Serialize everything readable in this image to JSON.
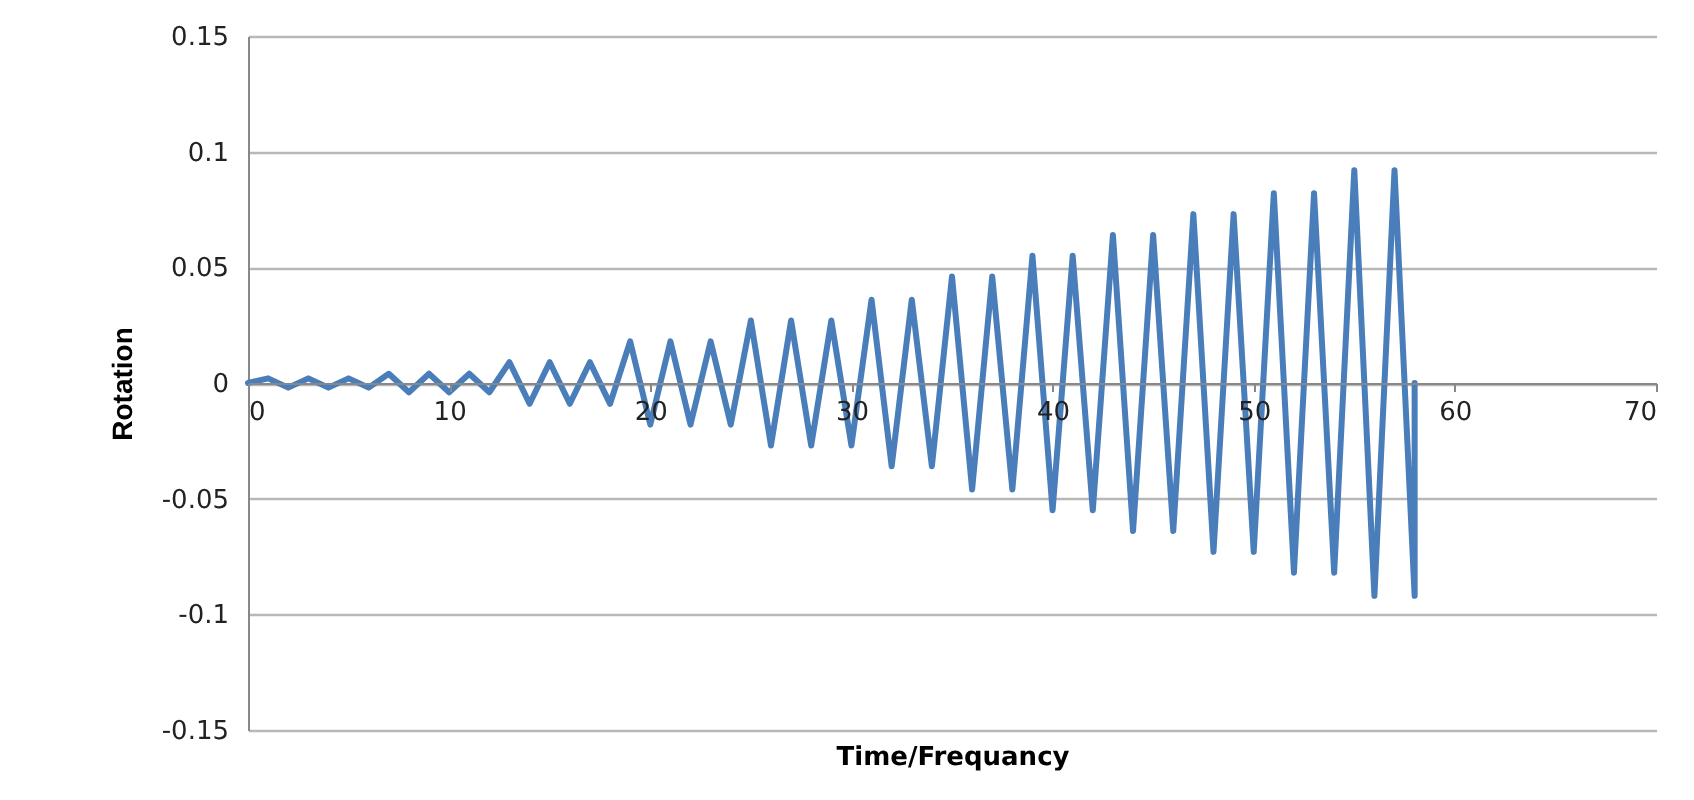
{
  "chart_data": {
    "type": "line",
    "xlabel": "Time/Frequancy",
    "ylabel": "Rotation",
    "x": [
      0,
      1,
      2,
      3,
      4,
      5,
      6,
      7,
      8,
      9,
      10,
      11,
      12,
      13,
      14,
      15,
      16,
      17,
      18,
      19,
      20,
      21,
      22,
      23,
      24,
      25,
      26,
      27,
      28,
      29,
      30,
      31,
      32,
      33,
      34,
      35,
      36,
      37,
      38,
      39,
      40,
      41,
      42,
      43,
      44,
      45,
      46,
      47,
      48,
      49,
      50,
      51,
      52,
      53,
      54,
      55,
      56,
      57,
      58,
      58
    ],
    "series": [
      {
        "color": "#4a7ebb",
        "values": [
          0,
          0.002,
          -0.002,
          0.002,
          -0.002,
          0.002,
          -0.002,
          0.004,
          -0.004,
          0.004,
          -0.004,
          0.004,
          -0.004,
          0.009,
          -0.009,
          0.009,
          -0.009,
          0.009,
          -0.009,
          0.018,
          -0.018,
          0.018,
          -0.018,
          0.018,
          -0.018,
          0.027,
          -0.027,
          0.027,
          -0.027,
          0.027,
          -0.027,
          0.036,
          -0.036,
          0.036,
          -0.036,
          0.046,
          -0.046,
          0.046,
          -0.046,
          0.055,
          -0.055,
          0.055,
          -0.055,
          0.064,
          -0.064,
          0.064,
          -0.064,
          0.073,
          -0.073,
          0.073,
          -0.073,
          0.082,
          -0.082,
          0.082,
          -0.082,
          0.092,
          -0.092,
          0.092,
          -0.092,
          0
        ]
      }
    ],
    "xlim": [
      0,
      70
    ],
    "xticks": [
      0,
      10,
      20,
      30,
      40,
      50,
      60,
      70
    ],
    "ylim": [
      -0.15,
      0.15
    ],
    "yticks": [
      -0.15,
      -0.1,
      -0.05,
      0,
      0.05,
      0.1,
      0.15
    ],
    "grid": "y",
    "marker": "none",
    "line_style": "solid"
  }
}
